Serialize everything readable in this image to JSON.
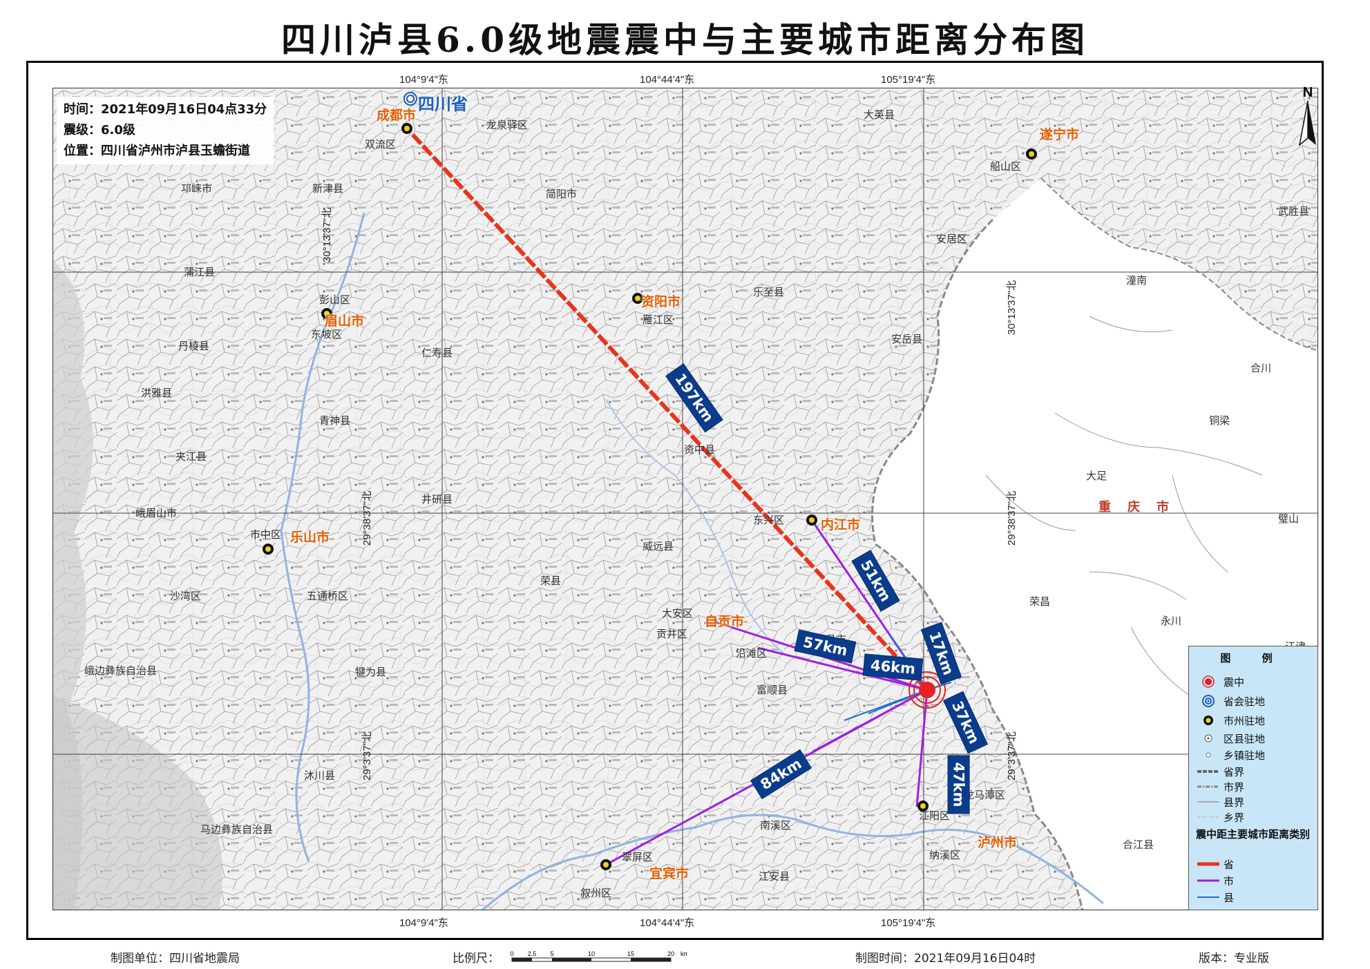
{
  "title": "四川泸县6.0级地震震中与主要城市距离分布图",
  "info": {
    "time": "时间：2021年09月16日04点33分",
    "magnitude": "震级：6.0级",
    "location": "位置：四川省泸州市泸县玉蟾街道"
  },
  "grid": {
    "top_labels": [
      "104°9'4\"东",
      "104°44'4\"东",
      "105°19'4\"东"
    ],
    "bottom_labels": [
      "104°9'4\"东",
      "104°44'4\"东",
      "105°19'4\"东"
    ],
    "left_labels": [
      "30°13'37\"北",
      "29°38'37\"北",
      "29°3'37\"北"
    ],
    "right_labels": [
      "30°13'37\"北",
      "29°38'37\"北",
      "29°3'37\"北"
    ]
  },
  "province_label": "四川省",
  "chongqing_label": "重庆市",
  "cities": [
    {
      "name": "成都市"
    },
    {
      "name": "资阳市"
    },
    {
      "name": "眉山市"
    },
    {
      "name": "乐山市"
    },
    {
      "name": "内江市"
    },
    {
      "name": "自贡市"
    },
    {
      "name": "宜宾市"
    },
    {
      "name": "泸州市"
    },
    {
      "name": "遂宁市"
    }
  ],
  "counties": [
    "双流区",
    "新津县",
    "邛崃市",
    "蒲江县",
    "彭山区",
    "东坡区",
    "丹棱县",
    "洪雅县",
    "青神县",
    "仁寿县",
    "夹江县",
    "井研县",
    "峨眉山市",
    "市中区",
    "五通桥区",
    "沙湾区",
    "犍为县",
    "沐川县",
    "峨边彝族自治县",
    "马边彝族自治县",
    "龙泉驿区",
    "简阳市",
    "乐至县",
    "安岳县",
    "雁江区",
    "资中县",
    "东兴区",
    "威远县",
    "荣县",
    "大安区",
    "贡井区",
    "沿滩区",
    "富顺县",
    "隆昌市",
    "江阳区",
    "龙马潭区",
    "纳溪区",
    "南溪区",
    "翠屏区",
    "叙州区",
    "江安县",
    "大英县",
    "船山区",
    "安居区",
    "潼南",
    "合川",
    "铜梁",
    "大足",
    "璧山",
    "荣昌",
    "永川",
    "江津",
    "武胜县",
    "合江县"
  ],
  "distances": [
    {
      "label": "197km",
      "category": "省"
    },
    {
      "label": "51km",
      "category": "市"
    },
    {
      "label": "57km",
      "category": "市"
    },
    {
      "label": "46km",
      "category": "市"
    },
    {
      "label": "17km",
      "category": "县"
    },
    {
      "label": "37km",
      "category": "市"
    },
    {
      "label": "47km",
      "category": "市"
    },
    {
      "label": "84km",
      "category": "市"
    }
  ],
  "legend": {
    "title": "图 例",
    "items": [
      "震中",
      "省会驻地",
      "市州驻地",
      "区县驻地",
      "乡镇驻地",
      "省界",
      "市界",
      "县界",
      "乡界"
    ],
    "subtitle": "震中距主要城市距离类别",
    "categories": [
      {
        "label": "省",
        "color": "#e8341c"
      },
      {
        "label": "市",
        "color": "#a020e0"
      },
      {
        "label": "县",
        "color": "#1f6fd0"
      }
    ]
  },
  "north_label": "N",
  "footer": {
    "unit": "制图单位：四川省地震局",
    "scale_label": "比例尺：",
    "scale_ticks": [
      "0",
      "2.5",
      "5",
      "10",
      "15",
      "20"
    ],
    "scale_unit": "km",
    "time": "制图时间：2021年09月16日04时",
    "version": "版本：专业版"
  },
  "colors": {
    "province_line": "#e8341c",
    "city_line": "#a020e0",
    "county_line": "#1f6fd0",
    "label_bg": "#0b3c8c",
    "city_text": "#e65c00"
  }
}
